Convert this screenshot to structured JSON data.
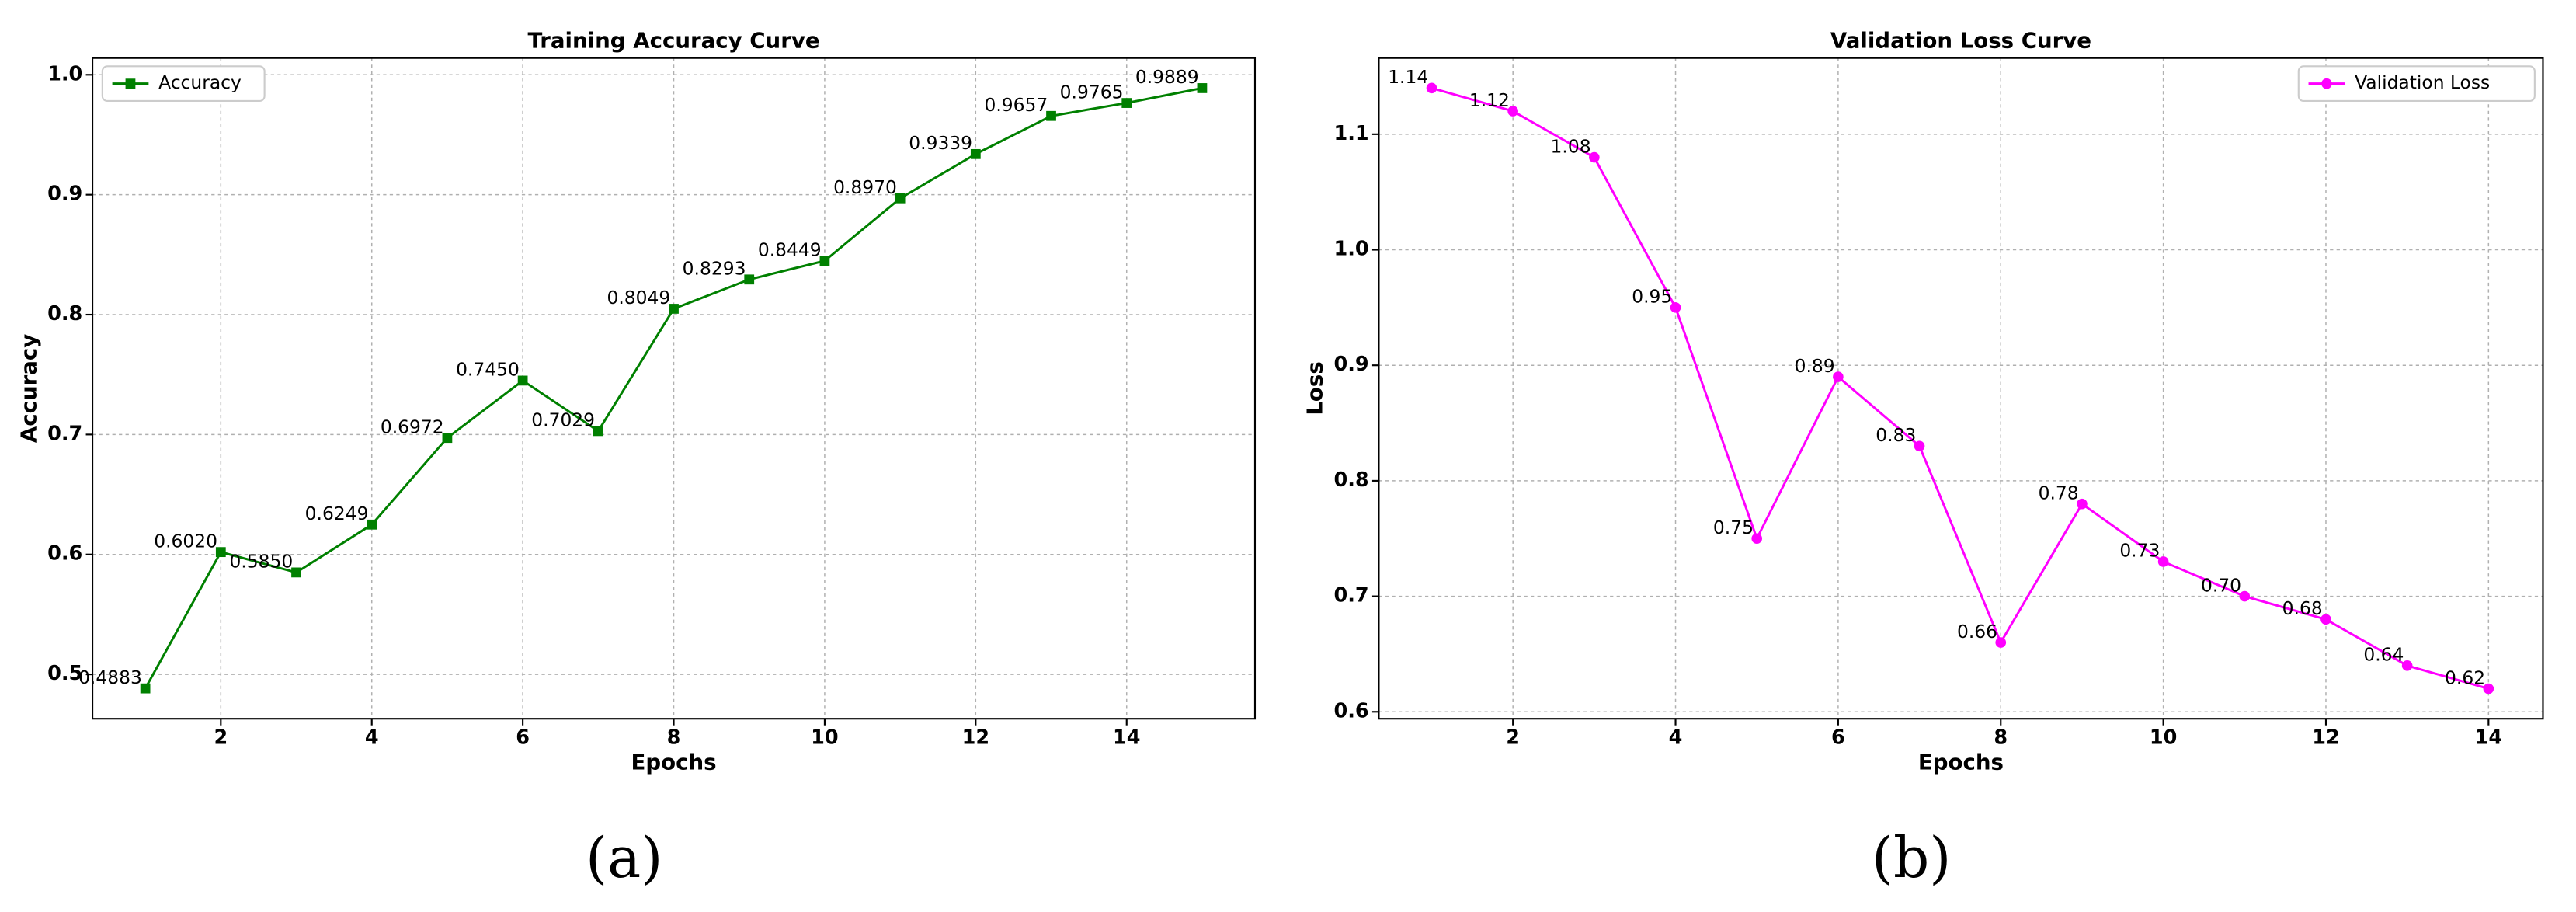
{
  "chart_data": [
    {
      "type": "line",
      "title": "Training Accuracy Curve",
      "xlabel": "Epochs",
      "ylabel": "Accuracy",
      "caption": "(a)",
      "x": [
        1,
        2,
        3,
        4,
        5,
        6,
        7,
        8,
        9,
        10,
        11,
        12,
        13,
        14,
        15
      ],
      "series": [
        {
          "name": "Accuracy",
          "color": "#008000",
          "marker": "square",
          "values": [
            0.4883,
            0.602,
            0.585,
            0.6249,
            0.6972,
            0.745,
            0.7029,
            0.8049,
            0.8293,
            0.8449,
            0.897,
            0.9339,
            0.9657,
            0.9765,
            0.9889
          ],
          "value_labels": [
            "0.4883",
            "0.6020",
            "0.5850",
            "0.6249",
            "0.6972",
            "0.7450",
            "0.7029",
            "0.8049",
            "0.8293",
            "0.8449",
            "0.8970",
            "0.9339",
            "0.9657",
            "0.9765",
            "0.9889"
          ]
        }
      ],
      "xlim": [
        0.3,
        15.7
      ],
      "ylim": [
        0.463,
        1.014
      ],
      "xticks": [
        2,
        4,
        6,
        8,
        10,
        12,
        14
      ],
      "yticks": [
        0.5,
        0.6,
        0.7,
        0.8,
        0.9,
        {
          "value": 1,
          "label": "1.0"
        }
      ],
      "grid": true,
      "legend": "upper left"
    },
    {
      "type": "line",
      "title": "Validation Loss Curve",
      "xlabel": "Epochs",
      "ylabel": "Loss",
      "caption": "(b)",
      "x": [
        1,
        2,
        3,
        4,
        5,
        6,
        7,
        8,
        9,
        10,
        11,
        12,
        13,
        14
      ],
      "series": [
        {
          "name": "Validation Loss",
          "color": "#ff00ff",
          "marker": "circle",
          "values": [
            1.14,
            1.12,
            1.08,
            0.95,
            0.75,
            0.89,
            0.83,
            0.66,
            0.78,
            0.73,
            0.7,
            0.68,
            0.64,
            0.62
          ],
          "value_labels": [
            "1.14",
            "1.12",
            "1.08",
            "0.95",
            "0.75",
            "0.89",
            "0.83",
            "0.66",
            "0.78",
            "0.73",
            "0.70",
            "0.68",
            "0.64",
            "0.62"
          ]
        }
      ],
      "xlim": [
        0.35,
        14.67
      ],
      "ylim": [
        0.594,
        1.166
      ],
      "xticks": [
        2,
        4,
        6,
        8,
        10,
        12,
        14
      ],
      "yticks": [
        0.6,
        0.7,
        0.8,
        0.9,
        {
          "value": 1,
          "label": "1.0"
        },
        1.1
      ],
      "grid": true,
      "legend": "upper right"
    }
  ]
}
